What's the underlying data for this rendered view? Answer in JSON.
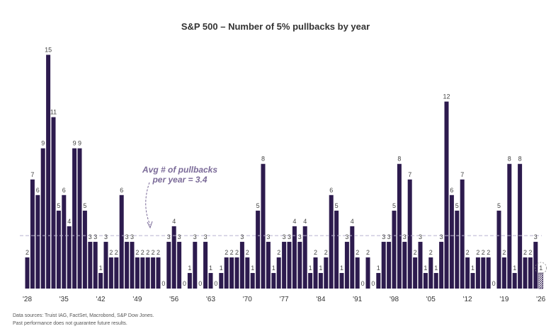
{
  "chart_data": {
    "type": "bar",
    "title": "S&P 500 – Number of 5% pullbacks by year",
    "xlabel": "",
    "ylabel": "",
    "ylim": [
      0,
      15
    ],
    "years": [
      1928,
      1929,
      1930,
      1931,
      1932,
      1933,
      1934,
      1935,
      1936,
      1937,
      1938,
      1939,
      1940,
      1941,
      1942,
      1943,
      1944,
      1945,
      1946,
      1947,
      1948,
      1949,
      1950,
      1951,
      1952,
      1953,
      1954,
      1955,
      1956,
      1957,
      1958,
      1959,
      1960,
      1961,
      1962,
      1963,
      1964,
      1965,
      1966,
      1967,
      1968,
      1969,
      1970,
      1971,
      1972,
      1973,
      1974,
      1975,
      1976,
      1977,
      1978,
      1979,
      1980,
      1981,
      1982,
      1983,
      1984,
      1985,
      1986,
      1987,
      1988,
      1989,
      1990,
      1991,
      1992,
      1993,
      1994,
      1995,
      1996,
      1997,
      1998,
      1999,
      2000,
      2001,
      2002,
      2003,
      2004,
      2005,
      2006,
      2007,
      2008,
      2009,
      2010,
      2011,
      2012,
      2013,
      2014,
      2015,
      2016,
      2017,
      2018,
      2019,
      2020,
      2021,
      2022,
      2023,
      2024,
      2025,
      2026
    ],
    "values": [
      2,
      7,
      6,
      9,
      15,
      11,
      5,
      6,
      4,
      9,
      9,
      5,
      3,
      3,
      1,
      3,
      2,
      2,
      6,
      3,
      3,
      2,
      2,
      2,
      2,
      2,
      0,
      3,
      4,
      3,
      0,
      1,
      3,
      0,
      3,
      1,
      0,
      1,
      2,
      2,
      2,
      3,
      2,
      1,
      5,
      8,
      3,
      1,
      2,
      3,
      3,
      4,
      3,
      4,
      1,
      2,
      1,
      2,
      6,
      5,
      1,
      3,
      4,
      2,
      0,
      2,
      0,
      1,
      3,
      3,
      5,
      8,
      3,
      7,
      2,
      3,
      1,
      2,
      1,
      3,
      12,
      6,
      5,
      7,
      2,
      1,
      2,
      2,
      2,
      0,
      5,
      2,
      8,
      1,
      8,
      2,
      2,
      3,
      1
    ],
    "x_tick_labels": [
      "'28",
      "'35",
      "'42",
      "'49",
      "'56",
      "'63",
      "'70",
      "'77",
      "'84",
      "'91",
      "'98",
      "'05",
      "'12",
      "'19",
      "'26"
    ],
    "tick_years": [
      1928,
      1935,
      1942,
      1949,
      1956,
      1963,
      1970,
      1977,
      1984,
      1991,
      1998,
      2005,
      2012,
      2019,
      2026
    ],
    "average": 3.4,
    "average_annotation": [
      "Avg # of pullbacks",
      "per year = 3.4"
    ],
    "partial_year": 2026,
    "grid": false,
    "colors": {
      "bar": "#2d1b4e",
      "avg_line": "#b9b2cf",
      "annotation": "#7a6a98",
      "label": "#444444"
    }
  },
  "footnotes": {
    "sources": "Data sources: Truist IAG, FactSet, Macrobond, S&P Dow Jones.",
    "disclaimer": "Past performance does not guarantee future results."
  }
}
